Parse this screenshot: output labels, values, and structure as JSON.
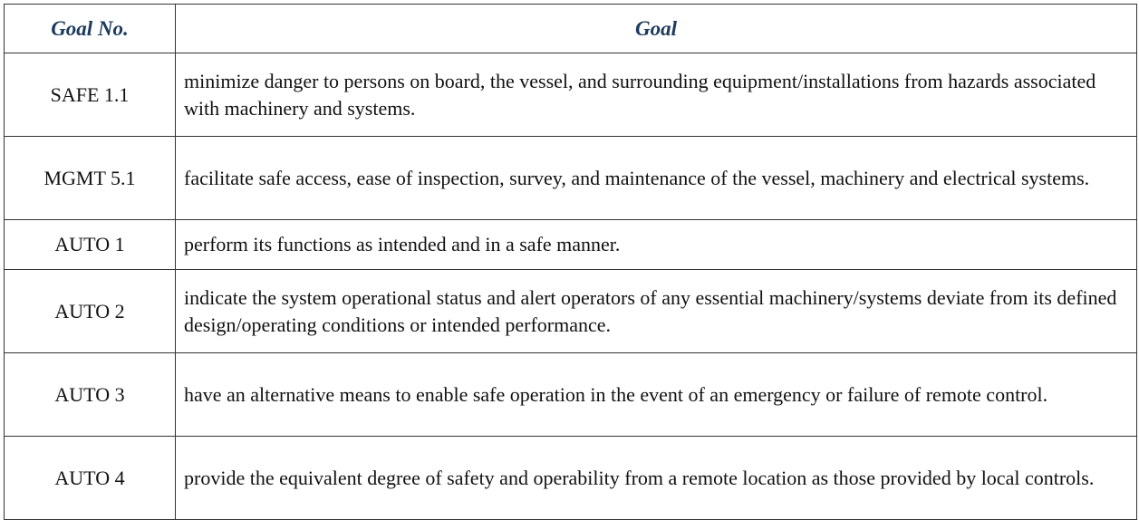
{
  "table": {
    "headers": {
      "goal_no": "Goal No.",
      "goal": "Goal"
    },
    "rows": [
      {
        "goal_no": "SAFE 1.1",
        "goal": "minimize danger to persons on board, the vessel, and surrounding equipment/installations from hazards associated with machinery and systems."
      },
      {
        "goal_no": "MGMT 5.1",
        "goal": "facilitate safe access, ease of inspection, survey, and maintenance of the vessel, machinery and electrical systems."
      },
      {
        "goal_no": "AUTO 1",
        "goal": "perform its functions as intended and in a safe manner."
      },
      {
        "goal_no": "AUTO 2",
        "goal": "indicate the system operational status and alert operators of any essential machinery/systems deviate from its defined design/operating conditions or intended performance."
      },
      {
        "goal_no": "AUTO 3",
        "goal": "have an alternative means to enable safe operation in the event of an emergency or failure of remote control."
      },
      {
        "goal_no": "AUTO 4",
        "goal": "provide the equivalent degree of safety and operability from a remote location as those provided by local controls."
      }
    ]
  }
}
